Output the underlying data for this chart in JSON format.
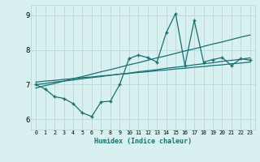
{
  "xlabel": "Humidex (Indice chaleur)",
  "x": [
    0,
    1,
    2,
    3,
    4,
    5,
    6,
    7,
    8,
    9,
    10,
    11,
    12,
    13,
    14,
    15,
    16,
    17,
    18,
    19,
    20,
    21,
    22,
    23
  ],
  "y_main": [
    7.0,
    6.87,
    6.65,
    6.6,
    6.45,
    6.18,
    6.08,
    6.5,
    6.52,
    7.0,
    7.75,
    7.85,
    7.78,
    7.65,
    8.5,
    9.05,
    7.55,
    8.85,
    7.65,
    7.72,
    7.78,
    7.55,
    7.75,
    7.7
  ],
  "y_reg1": [
    7.0,
    7.03,
    7.07,
    7.1,
    7.13,
    7.17,
    7.2,
    7.23,
    7.27,
    7.3,
    7.33,
    7.37,
    7.4,
    7.43,
    7.47,
    7.5,
    7.53,
    7.57,
    7.6,
    7.63,
    7.67,
    7.7,
    7.73,
    7.77
  ],
  "y_reg2": [
    6.9,
    6.97,
    7.03,
    7.1,
    7.17,
    7.23,
    7.3,
    7.37,
    7.43,
    7.5,
    7.57,
    7.63,
    7.7,
    7.77,
    7.83,
    7.9,
    7.97,
    8.03,
    8.1,
    8.17,
    8.23,
    8.3,
    8.37,
    8.43
  ],
  "y_reg3": [
    7.07,
    7.1,
    7.12,
    7.15,
    7.17,
    7.2,
    7.22,
    7.25,
    7.27,
    7.3,
    7.32,
    7.35,
    7.37,
    7.4,
    7.42,
    7.45,
    7.47,
    7.5,
    7.52,
    7.55,
    7.57,
    7.6,
    7.62,
    7.65
  ],
  "line_color": "#1a7070",
  "bg_color": "#d8f0f0",
  "grid_color": "#b8d8d8",
  "ylim": [
    5.7,
    9.3
  ],
  "yticks": [
    6,
    7,
    8,
    9
  ],
  "xticks": [
    0,
    1,
    2,
    3,
    4,
    5,
    6,
    7,
    8,
    9,
    10,
    11,
    12,
    13,
    14,
    15,
    16,
    17,
    18,
    19,
    20,
    21,
    22,
    23
  ]
}
